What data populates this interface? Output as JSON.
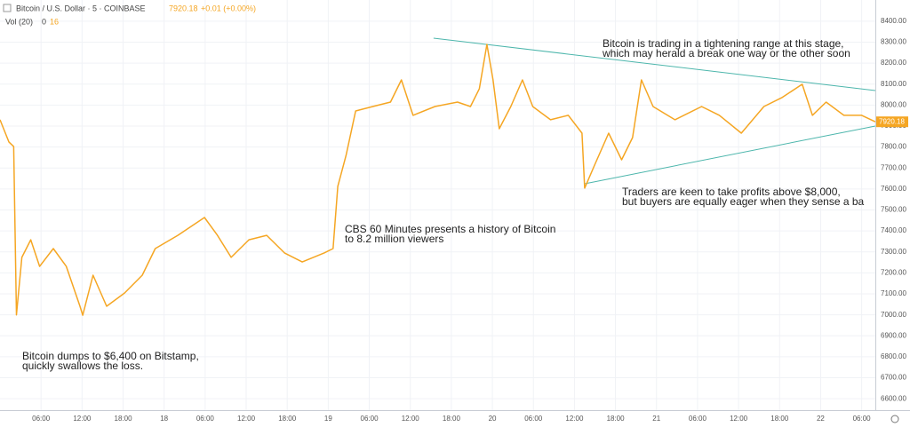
{
  "chart_data": {
    "type": "line",
    "title": "Bitcoin / U.S. Dollar · 5 · COINBASE",
    "last_price": 7920.18,
    "change": "+0.01 (+0.00%)",
    "volume_label": "Vol (20)",
    "volume_values": [
      "0",
      "16"
    ],
    "x": [
      0,
      1.3,
      2,
      2.4,
      3.2,
      4.5,
      5.8,
      7.8,
      9.7,
      11.7,
      12.1,
      13.6,
      15.6,
      18.2,
      20.8,
      22.7,
      26,
      29.9,
      31.8,
      33.8,
      36.4,
      39,
      41.6,
      44.2,
      47.4,
      48.7,
      49.4,
      50.6,
      52,
      54.5,
      57.1,
      58.7,
      60.4,
      63.6,
      66.9,
      68.8,
      70.1,
      71.2,
      72.1,
      73,
      74.7,
      76.4,
      77.9,
      80.5,
      83.1,
      85.1,
      85.5,
      87,
      89,
      90.9,
      92.5,
      93.8,
      95.5,
      98.7,
      102.6,
      105.2,
      108.4,
      111.7,
      114.3,
      117.3,
      118.8,
      120.8,
      123.4,
      126,
      128
    ],
    "series": [
      {
        "name": "BTCUSD",
        "color": "#f5a623",
        "values": [
          7930,
          7824,
          7802,
          7000,
          7274,
          7358,
          7231,
          7316,
          7231,
          7041,
          6998,
          7189,
          7041,
          7104,
          7189,
          7316,
          7379,
          7464,
          7379,
          7274,
          7358,
          7379,
          7295,
          7252,
          7295,
          7316,
          7612,
          7760,
          7972,
          7993,
          8014,
          8120,
          7951,
          7993,
          8014,
          7993,
          8078,
          8289,
          8120,
          7887,
          7993,
          8120,
          7993,
          7930,
          7951,
          7866,
          7604,
          7718,
          7866,
          7739,
          7845,
          8120,
          7993,
          7930,
          7993,
          7951,
          7866,
          7993,
          8035,
          8099,
          7951,
          8014,
          7951,
          7951,
          7920
        ]
      }
    ],
    "trendlines": [
      {
        "x": [
          63.4,
          128
        ],
        "values": [
          8319,
          8069
        ],
        "color": "#4db6ac"
      },
      {
        "x": [
          85.5,
          128
        ],
        "values": [
          7625,
          7900
        ],
        "color": "#4db6ac"
      }
    ],
    "annotations": [
      {
        "lines": [
          "Bitcoin dumps to $6,400 on Bitstamp,",
          "quickly swallows the loss."
        ]
      },
      {
        "lines": [
          "CBS 60 Minutes presents a history of Bitcoin",
          "to 8.2 million viewers"
        ]
      },
      {
        "lines": [
          "Bitcoin is trading in a tightening range at this stage,",
          "which may herald a break one way or the other soon"
        ]
      },
      {
        "lines": [
          "Traders are keen to take profits above $8,000,",
          "but buyers are equally eager when they sense a ba"
        ]
      }
    ],
    "xlim": [
      0,
      128
    ],
    "xticks": [
      {
        "value": 6,
        "label": "06:00"
      },
      {
        "value": 12,
        "label": "12:00"
      },
      {
        "value": 18,
        "label": "18:00"
      },
      {
        "value": 24,
        "label": "18"
      },
      {
        "value": 30,
        "label": "06:00"
      },
      {
        "value": 36,
        "label": "12:00"
      },
      {
        "value": 42,
        "label": "18:00"
      },
      {
        "value": 48,
        "label": "19"
      },
      {
        "value": 54,
        "label": "06:00"
      },
      {
        "value": 60,
        "label": "12:00"
      },
      {
        "value": 66,
        "label": "18:00"
      },
      {
        "value": 72,
        "label": "20"
      },
      {
        "value": 78,
        "label": "06:00"
      },
      {
        "value": 84,
        "label": "12:00"
      },
      {
        "value": 90,
        "label": "18:00"
      },
      {
        "value": 96,
        "label": "21"
      },
      {
        "value": 102,
        "label": "06:00"
      },
      {
        "value": 108,
        "label": "12:00"
      },
      {
        "value": 114,
        "label": "18:00"
      },
      {
        "value": 120,
        "label": "22"
      },
      {
        "value": 126,
        "label": "06:00"
      }
    ],
    "ylim": [
      6550,
      8450
    ],
    "yticks": [
      {
        "value": 6600,
        "label": "6600.00"
      },
      {
        "value": 6700,
        "label": "6700.00"
      },
      {
        "value": 6800,
        "label": "6800.00"
      },
      {
        "value": 6900,
        "label": "6900.00"
      },
      {
        "value": 7000,
        "label": "7000.00"
      },
      {
        "value": 7100,
        "label": "7100.00"
      },
      {
        "value": 7200,
        "label": "7200.00"
      },
      {
        "value": 7300,
        "label": "7300.00"
      },
      {
        "value": 7400,
        "label": "7400.00"
      },
      {
        "value": 7500,
        "label": "7500.00"
      },
      {
        "value": 7600,
        "label": "7600.00"
      },
      {
        "value": 7700,
        "label": "7700.00"
      },
      {
        "value": 7800,
        "label": "7800.00"
      },
      {
        "value": 7900,
        "label": "7900.00"
      },
      {
        "value": 8000,
        "label": "8000.00"
      },
      {
        "value": 8100,
        "label": "8100.00"
      },
      {
        "value": 8200,
        "label": "8200.00"
      },
      {
        "value": 8300,
        "label": "8300.00"
      },
      {
        "value": 8400,
        "label": "8400.00"
      }
    ],
    "grid": true
  }
}
